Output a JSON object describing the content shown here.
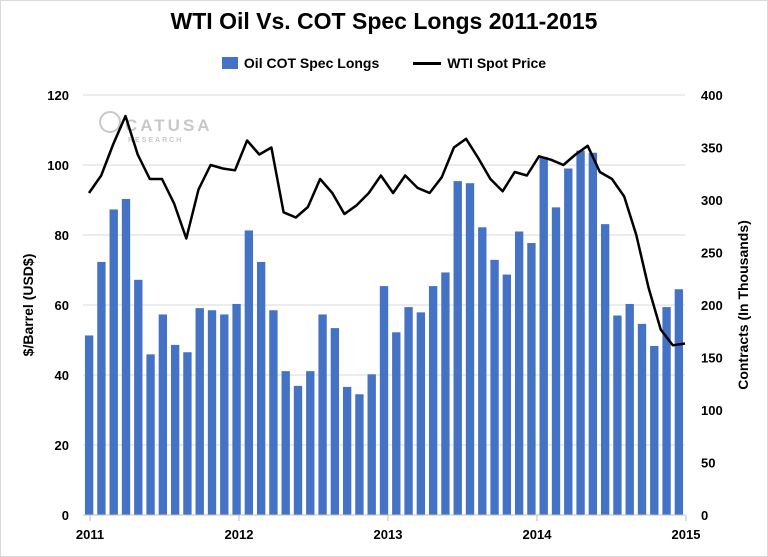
{
  "chart_data": {
    "type": "bar+line",
    "title": "WTI Oil Vs. COT Spec Longs 2011-2015",
    "legend": [
      "Oil COT Spec Longs",
      "WTI Spot Price"
    ],
    "legend_position": "top",
    "ylabel_left": "$/Barrel (USD$)",
    "ylabel_right": "Contracts (In Thousands)",
    "yticks_left": [
      "0",
      "20",
      "40",
      "60",
      "80",
      "100",
      "120"
    ],
    "yticks_right": [
      "0",
      "50",
      "100",
      "150",
      "200",
      "250",
      "300",
      "350",
      "400"
    ],
    "xticks": [
      "2011",
      "2012",
      "2013",
      "2014",
      "2015"
    ],
    "ylim_left": [
      0,
      120
    ],
    "ylim_right": [
      0,
      400
    ],
    "xlim": [
      2011.0,
      2015.0
    ],
    "grid": "horizontal",
    "colors": {
      "bars": "#4472c4",
      "line": "#000000",
      "grid": "#d9d9d9"
    },
    "series": [
      {
        "name": "Oil COT Spec Longs",
        "kind": "bar",
        "axis": "right",
        "values": [
          171,
          241,
          291,
          301,
          224,
          153,
          191,
          162,
          155,
          197,
          195,
          191,
          201,
          271,
          241,
          195,
          137,
          123,
          137,
          191,
          178,
          122,
          115,
          134,
          218,
          174,
          198,
          193,
          218,
          231,
          318,
          316,
          274,
          243,
          229,
          270,
          259,
          341,
          293,
          330,
          347,
          345,
          277,
          190,
          201,
          182,
          161,
          198,
          215
        ]
      },
      {
        "name": "WTI Spot Price",
        "kind": "line",
        "axis": "left",
        "values": [
          92,
          97,
          106,
          114,
          103,
          96,
          96,
          89,
          79,
          93,
          100,
          99,
          98.5,
          107,
          103,
          105,
          86.5,
          85,
          88,
          96,
          92,
          86,
          88.5,
          92,
          97,
          92,
          97,
          93.5,
          92,
          96.5,
          105,
          107.5,
          102,
          96,
          92.5,
          98,
          97,
          102.5,
          101.5,
          100,
          103,
          105.5,
          98,
          96,
          91,
          80,
          65,
          53,
          48.5,
          49
        ]
      }
    ],
    "watermark": {
      "name": "CATUSA",
      "tagline": "RESEARCH"
    }
  }
}
